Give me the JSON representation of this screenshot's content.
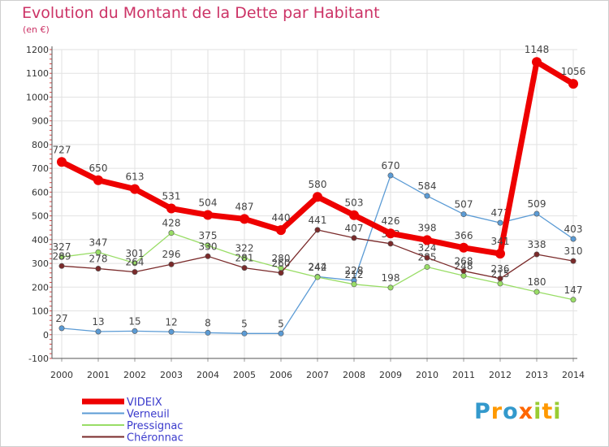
{
  "chart_data": {
    "type": "line",
    "title": "Evolution du Montant de la Dette par Habitant",
    "subtitle": "(en €)",
    "x": [
      "2000",
      "2001",
      "2002",
      "2003",
      "2004",
      "2005",
      "2006",
      "2007",
      "2008",
      "2009",
      "2010",
      "2011",
      "2012",
      "2013",
      "2014"
    ],
    "ylim": [
      -100,
      1200
    ],
    "yticks": [
      -100,
      0,
      100,
      200,
      300,
      400,
      500,
      600,
      700,
      800,
      900,
      1000,
      1100,
      1200
    ],
    "grid": true,
    "legend_position": "bottom-left",
    "series": [
      {
        "name": "Verneuil",
        "color": "#5b9bd5",
        "values": [
          27,
          13,
          15,
          12,
          8,
          5,
          5,
          244,
          228,
          670,
          584,
          507,
          471,
          509,
          403
        ]
      },
      {
        "name": "Pressignac",
        "color": "#99dd66",
        "values": [
          327,
          347,
          301,
          428,
          375,
          322,
          280,
          242,
          212,
          198,
          285,
          248,
          215,
          180,
          147
        ]
      },
      {
        "name": "Chéronnac",
        "color": "#7a2a2a",
        "values": [
          289,
          278,
          264,
          296,
          330,
          281,
          260,
          441,
          407,
          383,
          324,
          268,
          236,
          338,
          310
        ]
      },
      {
        "name": "VIDEIX",
        "color": "#ee0000",
        "values": [
          727,
          650,
          613,
          531,
          504,
          487,
          440,
          580,
          503,
          426,
          398,
          366,
          341,
          1148,
          1056
        ]
      }
    ]
  },
  "logo": {
    "text": "Proxiti",
    "letters": [
      "P",
      "r",
      "o",
      "x",
      "i",
      "t",
      "i"
    ],
    "colors": [
      "#3399cc",
      "#ff9900",
      "#3399cc",
      "#ff6600",
      "#99cc33",
      "#ff9900",
      "#99cc33"
    ]
  }
}
